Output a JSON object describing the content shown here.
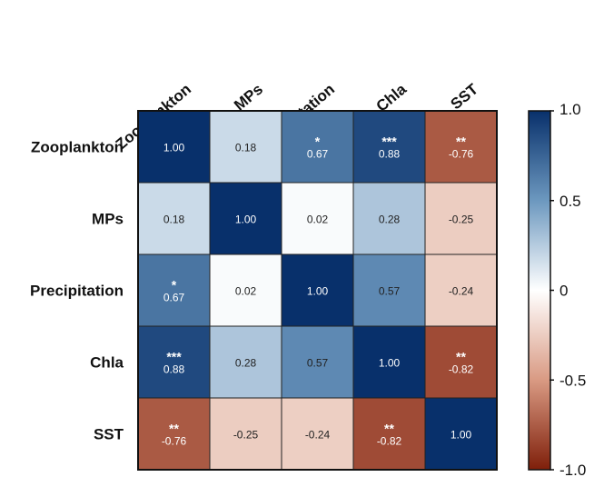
{
  "chart_data": {
    "type": "heatmap",
    "x_labels": [
      "Zooplankton",
      "MPs",
      "Precipitation",
      "Chla",
      "SST"
    ],
    "y_labels": [
      "Zooplankton",
      "MPs",
      "Precipitation",
      "Chla",
      "SST"
    ],
    "values": [
      [
        1.0,
        0.18,
        0.67,
        0.88,
        -0.76
      ],
      [
        0.18,
        1.0,
        0.02,
        0.28,
        -0.25
      ],
      [
        0.67,
        0.02,
        1.0,
        0.57,
        -0.24
      ],
      [
        0.88,
        0.28,
        0.57,
        1.0,
        -0.82
      ],
      [
        -0.76,
        -0.25,
        -0.24,
        -0.82,
        1.0
      ]
    ],
    "value_labels": [
      [
        "1.00",
        "0.18",
        "0.67",
        "0.88",
        "-0.76"
      ],
      [
        "0.18",
        "1.00",
        "0.02",
        "0.28",
        "-0.25"
      ],
      [
        "0.67",
        "0.02",
        "1.00",
        "0.57",
        "-0.24"
      ],
      [
        "0.88",
        "0.28",
        "0.57",
        "1.00",
        "-0.82"
      ],
      [
        "-0.76",
        "-0.25",
        "-0.24",
        "-0.82",
        "1.00"
      ]
    ],
    "significance": [
      [
        "",
        "",
        "*",
        "***",
        "**"
      ],
      [
        "",
        "",
        "",
        "",
        ""
      ],
      [
        "*",
        "",
        "",
        "",
        ""
      ],
      [
        "***",
        "",
        "",
        "",
        "**"
      ],
      [
        "**",
        "",
        "",
        "**",
        ""
      ]
    ],
    "colorbar": {
      "range": [
        -1.0,
        1.0
      ],
      "ticks": [
        1.0,
        0.5,
        0,
        -0.5,
        -1.0
      ],
      "tick_labels": [
        "1.0",
        "0.5",
        "0",
        "-0.5",
        "-1.0"
      ],
      "colors": {
        "max": "#08306b",
        "mid": "#ffffff",
        "min": "#7f1f0a"
      }
    },
    "title": "",
    "xlabel": "",
    "ylabel": ""
  }
}
